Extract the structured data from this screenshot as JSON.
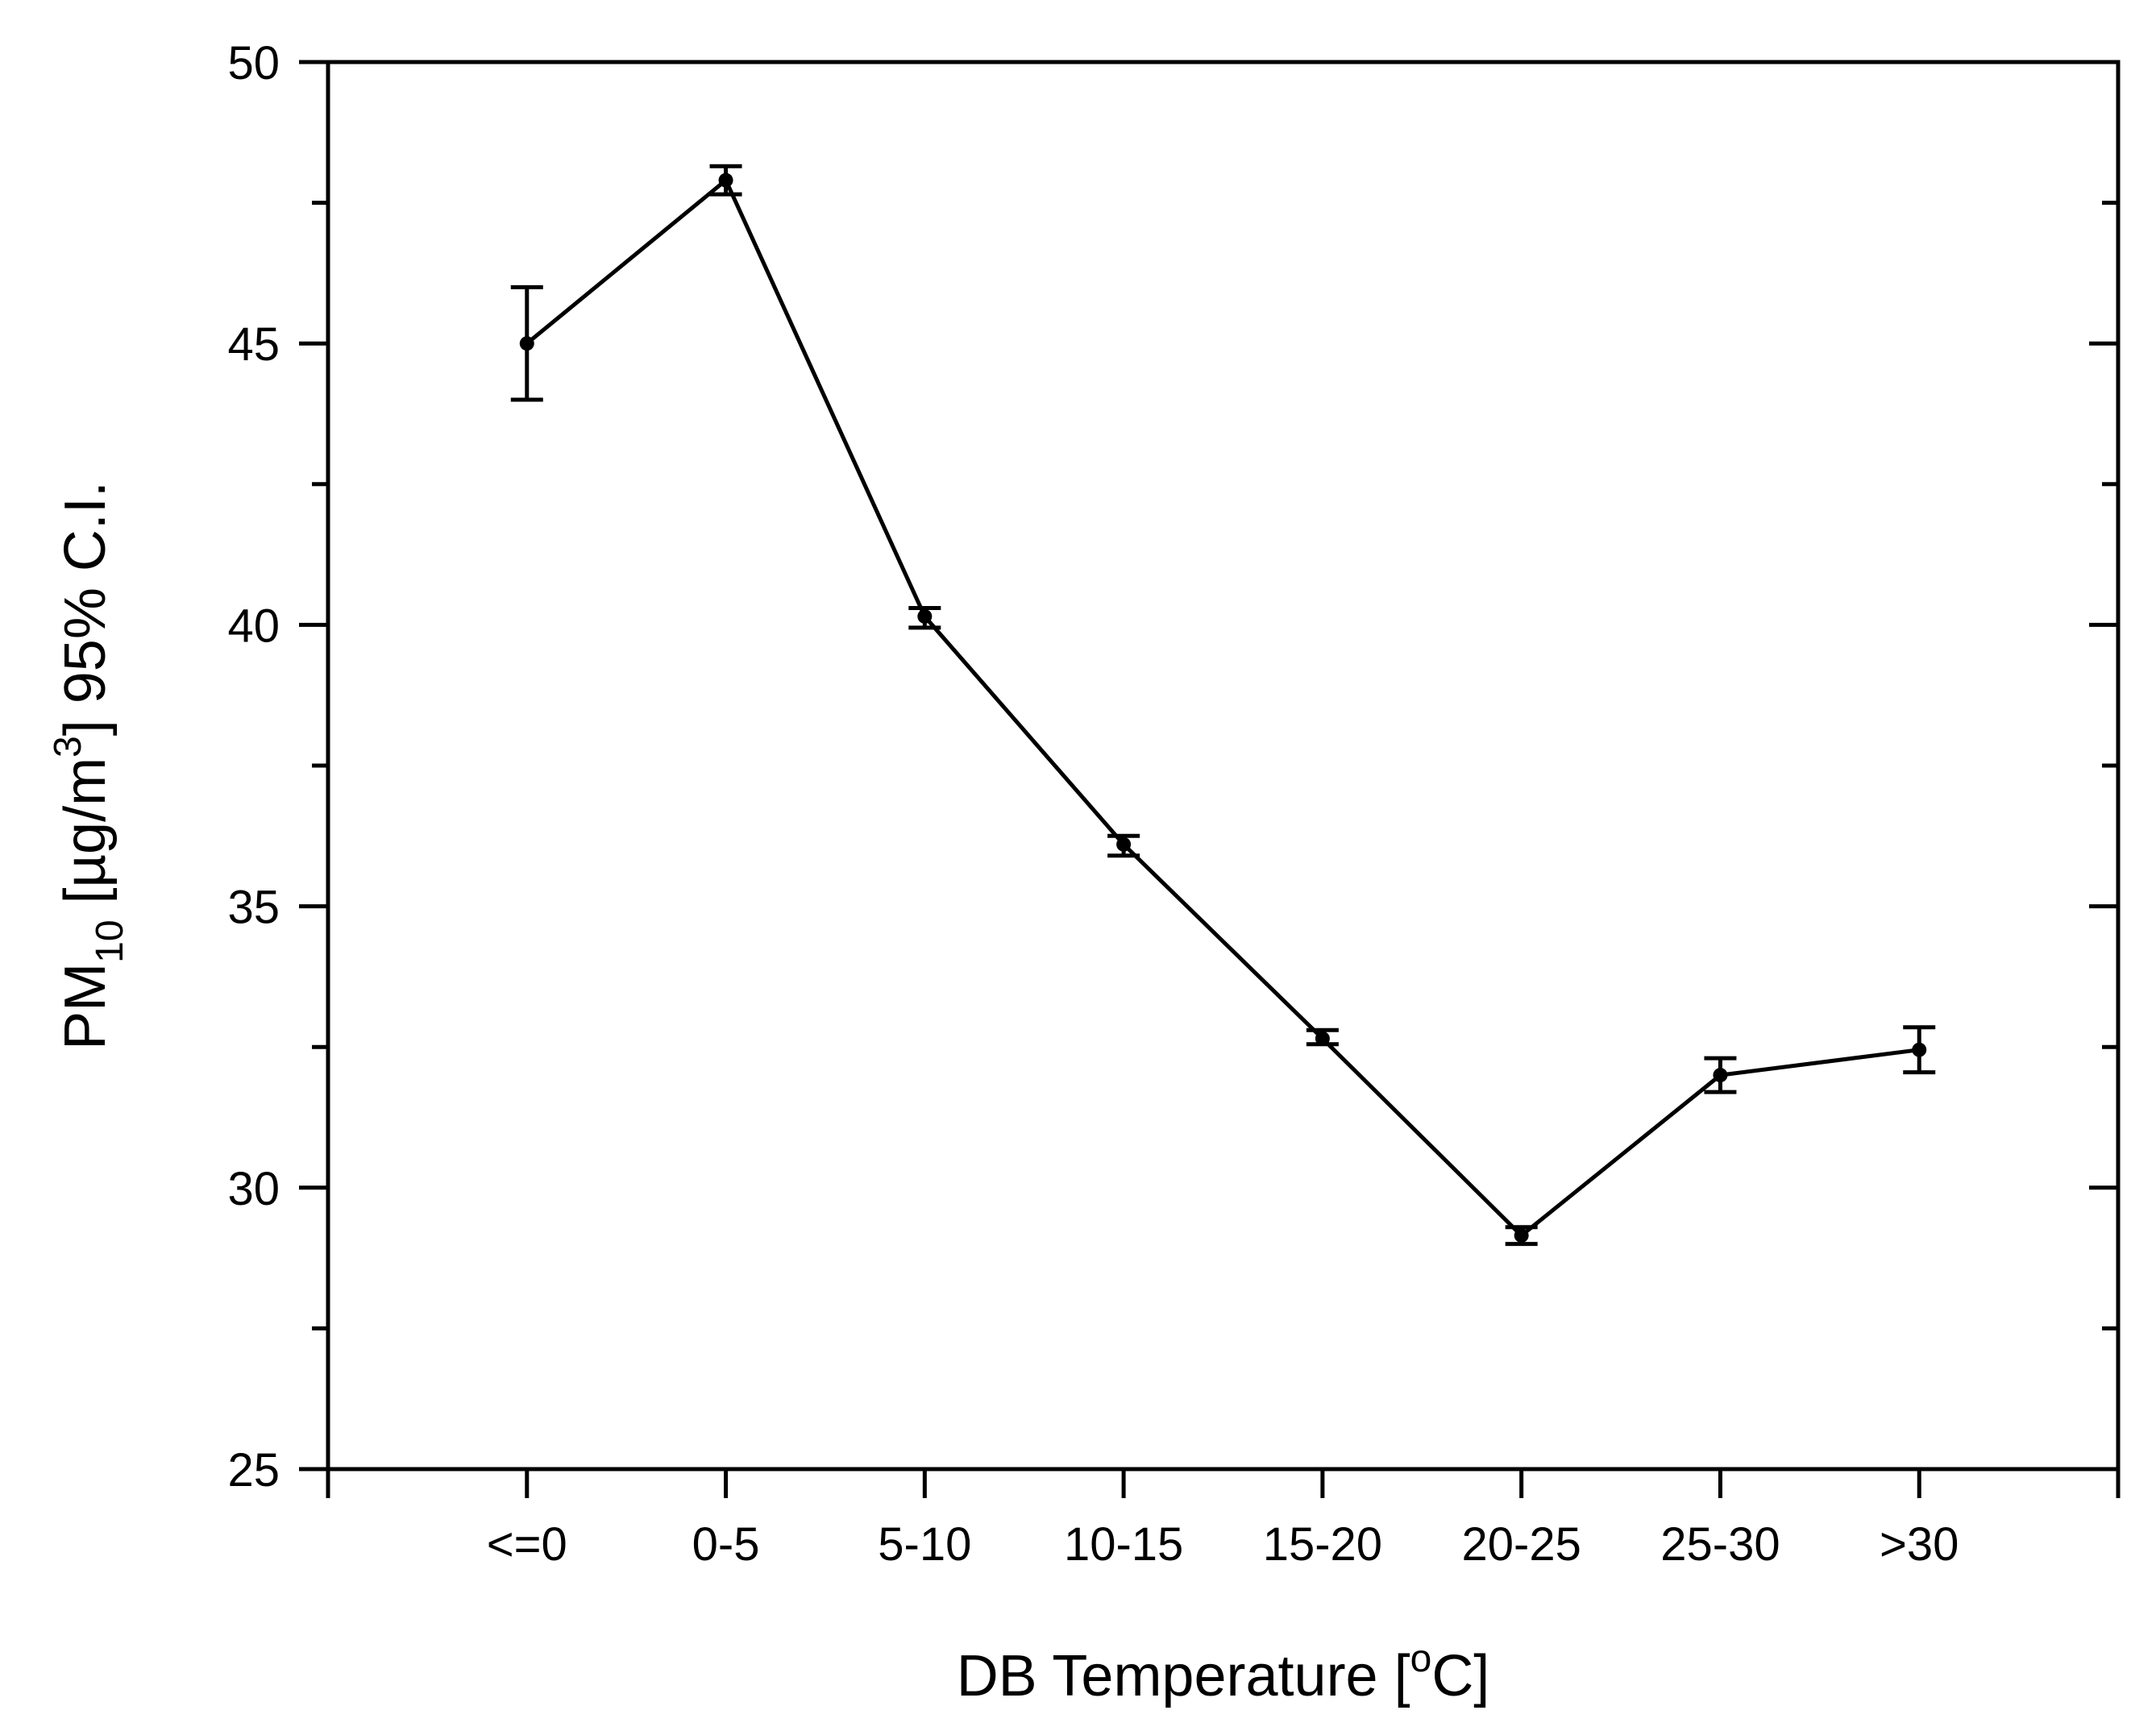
{
  "chart_data": {
    "type": "line",
    "xlabel": "DB Temperature [°C]",
    "xlabel_parts": {
      "main": "DB Temperature [",
      "sup": "o",
      "end": "C]"
    },
    "ylabel": "PM10 [µg/m3] 95% C.I.",
    "ylabel_parts": {
      "main": "PM",
      "sub": "10",
      "mid": " [µg/m",
      "sup": "3",
      "end": "] 95% C.I."
    },
    "categories": [
      "<=0",
      "0-5",
      "5-10",
      "10-15",
      "15-20",
      "20-25",
      "25-30",
      ">30"
    ],
    "series": [
      {
        "values": [
          45.0,
          47.9,
          40.15,
          36.1,
          32.65,
          29.15,
          32.0,
          32.45
        ],
        "lower": [
          44.0,
          47.65,
          39.95,
          35.9,
          32.55,
          29.0,
          31.7,
          32.05
        ],
        "upper": [
          46.0,
          48.15,
          40.3,
          36.25,
          32.8,
          29.3,
          32.3,
          32.85
        ]
      }
    ],
    "ylim": [
      25,
      50
    ],
    "yticks": [
      25,
      30,
      35,
      40,
      45,
      50
    ],
    "yminor_step": 2.5,
    "grid": false,
    "colors": {
      "line": "#000000",
      "axis": "#000000"
    }
  }
}
